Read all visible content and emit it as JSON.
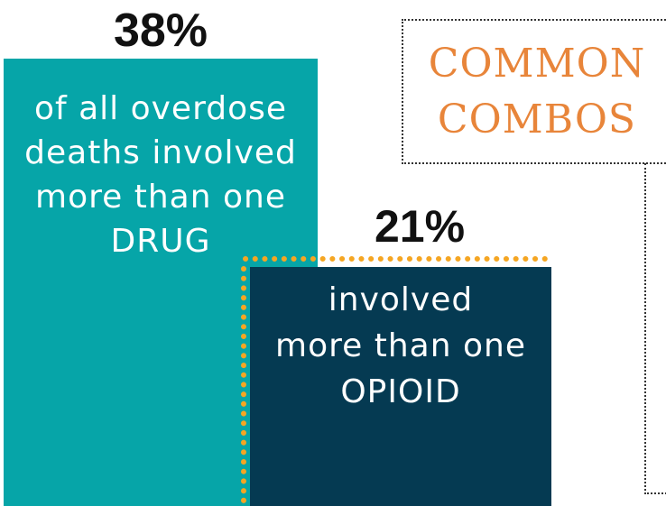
{
  "stat_all_drugs": {
    "percent": "38%",
    "line1": "of all overdose",
    "line2": "deaths involved",
    "line3": "more than one",
    "line4": "DRUG",
    "color": "#06a5a8"
  },
  "stat_opioids": {
    "percent": "21%",
    "line1": "involved",
    "line2": "more than one",
    "line3": "OPIOID",
    "color": "#053a52",
    "dot_color": "#f5a623"
  },
  "common_combos": {
    "line1": "COMMON",
    "line2": "COMBOS",
    "color": "#e8853a"
  }
}
